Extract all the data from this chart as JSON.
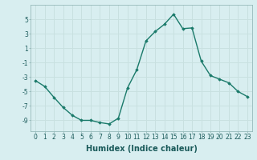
{
  "x": [
    0,
    1,
    2,
    3,
    4,
    5,
    6,
    7,
    8,
    9,
    10,
    11,
    12,
    13,
    14,
    15,
    16,
    17,
    18,
    19,
    20,
    21,
    22,
    23
  ],
  "y": [
    -3.5,
    -4.3,
    -5.8,
    -7.2,
    -8.3,
    -9.0,
    -9.0,
    -9.3,
    -9.5,
    -8.7,
    -4.5,
    -2.0,
    2.0,
    3.3,
    4.3,
    5.7,
    3.7,
    3.8,
    -0.8,
    -2.8,
    -3.3,
    -3.8,
    -5.0,
    -5.7
  ],
  "line_color": "#1a7a6a",
  "marker": "D",
  "marker_size": 1.8,
  "xlabel": "Humidex (Indice chaleur)",
  "xlim": [
    -0.5,
    23.5
  ],
  "ylim": [
    -10.5,
    7.0
  ],
  "yticks": [
    -9,
    -7,
    -5,
    -3,
    -1,
    1,
    3,
    5
  ],
  "xticks": [
    0,
    1,
    2,
    3,
    4,
    5,
    6,
    7,
    8,
    9,
    10,
    11,
    12,
    13,
    14,
    15,
    16,
    17,
    18,
    19,
    20,
    21,
    22,
    23
  ],
  "xtick_labels": [
    "0",
    "1",
    "2",
    "3",
    "4",
    "5",
    "6",
    "7",
    "8",
    "9",
    "10",
    "11",
    "12",
    "13",
    "14",
    "15",
    "16",
    "17",
    "18",
    "19",
    "20",
    "21",
    "22",
    "23"
  ],
  "grid_color": "#c8e0e0",
  "background_color": "#d8eef0",
  "line_width": 1.0,
  "xlabel_fontsize": 7,
  "tick_fontsize": 5.5
}
